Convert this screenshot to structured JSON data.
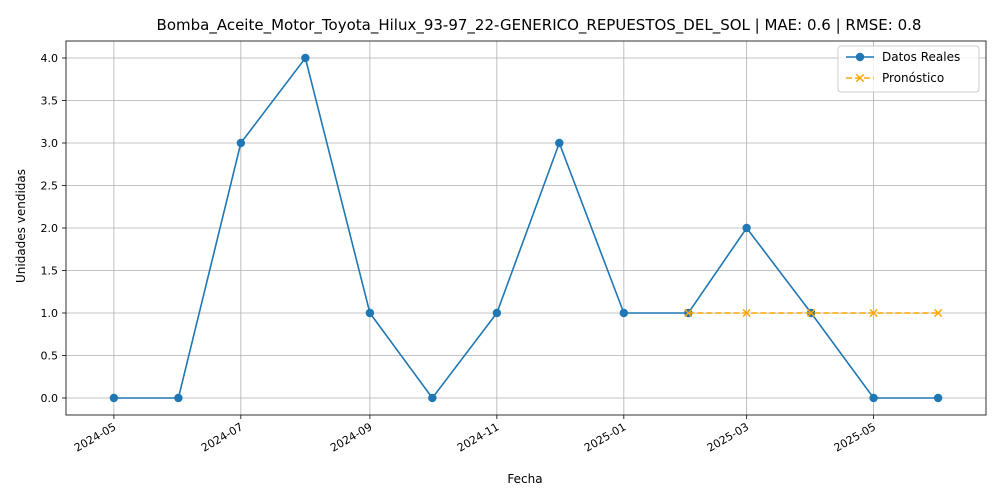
{
  "chart_data": {
    "type": "line",
    "title": "Bomba_Aceite_Motor_Toyota_Hilux_93-97_22-GENERICO_REPUESTOS_DEL_SOL | MAE: 0.6 | RMSE: 0.8",
    "xlabel": "Fecha",
    "ylabel": "Unidades vendidas",
    "ylim": [
      -0.2,
      4.2
    ],
    "xlim": [
      "2024-04-08",
      "2025-06-24"
    ],
    "x_ticks": [
      "2024-05",
      "2024-07",
      "2024-09",
      "2024-11",
      "2025-01",
      "2025-03",
      "2025-05"
    ],
    "y_ticks": [
      "0.0",
      "0.5",
      "1.0",
      "1.5",
      "2.0",
      "2.5",
      "3.0",
      "3.5",
      "4.0"
    ],
    "grid": true,
    "legend_position": "top-right",
    "series": [
      {
        "name": "Datos Reales",
        "color": "#1f77b4",
        "line_style": "solid",
        "marker": "circle",
        "x": [
          "2024-05-01",
          "2024-06-01",
          "2024-07-01",
          "2024-08-01",
          "2024-09-01",
          "2024-10-01",
          "2024-11-01",
          "2024-12-01",
          "2025-01-01",
          "2025-02-01",
          "2025-03-01",
          "2025-04-01",
          "2025-05-01",
          "2025-06-01"
        ],
        "values": [
          0,
          0,
          3,
          4,
          1,
          0,
          1,
          3,
          1,
          1,
          2,
          1,
          0,
          0
        ]
      },
      {
        "name": "Pronóstico",
        "color": "#ffa500",
        "line_style": "dashed",
        "marker": "x",
        "x": [
          "2025-02-01",
          "2025-03-01",
          "2025-04-01",
          "2025-05-01",
          "2025-06-01"
        ],
        "values": [
          1,
          1,
          1,
          1,
          1
        ]
      }
    ]
  }
}
